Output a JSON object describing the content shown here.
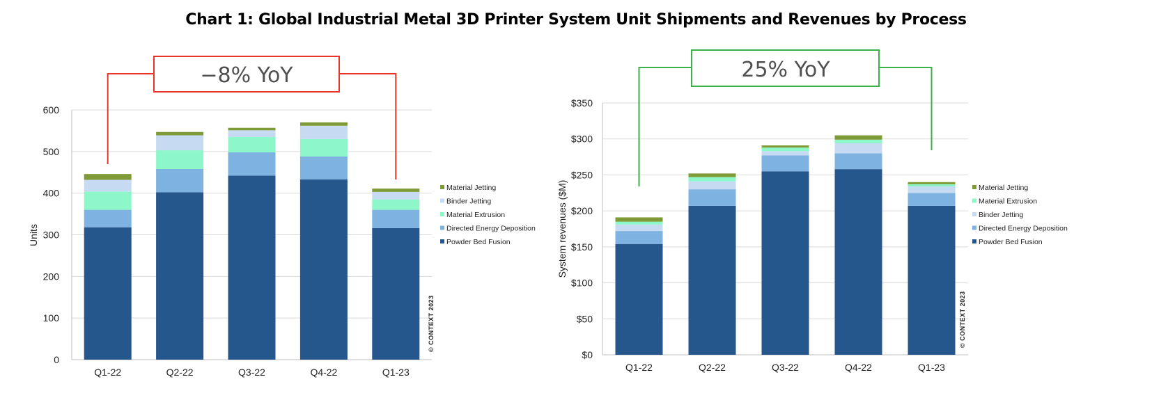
{
  "title": "Chart 1: Global Industrial Metal 3D Printer System Unit Shipments and Revenues by Process",
  "colors": {
    "Powder Bed Fusion": "#25568c",
    "Directed Energy Deposition": "#7eb2e0",
    "Material Extrusion": "#8ef7c9",
    "Binder Jetting": "#c6daf2",
    "Material Jetting": "#7f9b37",
    "callout_red": "#e8352b",
    "callout_green": "#3bb14a"
  },
  "chart_data": [
    {
      "type": "bar",
      "stacked": true,
      "title": "",
      "xlabel": "",
      "ylabel": "Units",
      "ylim": [
        0,
        600
      ],
      "yticks": [
        0,
        100,
        200,
        300,
        400,
        500,
        600
      ],
      "ytick_labels": [
        "0",
        "100",
        "200",
        "300",
        "400",
        "500",
        "600"
      ],
      "grid": true,
      "categories": [
        "Q1-22",
        "Q2-22",
        "Q3-22",
        "Q4-22",
        "Q1-23"
      ],
      "series": [
        {
          "name": "Powder Bed Fusion",
          "values": [
            318,
            402,
            442,
            433,
            316
          ]
        },
        {
          "name": "Directed Energy Deposition",
          "values": [
            42,
            56,
            56,
            55,
            44
          ]
        },
        {
          "name": "Material Extrusion",
          "values": [
            44,
            45,
            37,
            42,
            25
          ]
        },
        {
          "name": "Binder Jetting",
          "values": [
            28,
            36,
            16,
            32,
            18
          ]
        },
        {
          "name": "Material Jetting",
          "values": [
            14,
            8,
            6,
            8,
            8
          ]
        }
      ],
      "legend_order": [
        "Material Jetting",
        "Binder Jetting",
        "Material Extrusion",
        "Directed Energy Deposition",
        "Powder Bed Fusion"
      ],
      "legend_position": "right",
      "annotation": "−8% YoY",
      "copyright": "© CONTEXT 2023"
    },
    {
      "type": "bar",
      "stacked": true,
      "title": "",
      "xlabel": "",
      "ylabel": "System revenues ($M)",
      "ylim": [
        0,
        350
      ],
      "yticks": [
        0,
        50,
        100,
        150,
        200,
        250,
        300,
        350
      ],
      "ytick_labels": [
        "$0",
        "$50",
        "$100",
        "$150",
        "$200",
        "$250",
        "$300",
        "$350"
      ],
      "grid": true,
      "categories": [
        "Q1-22",
        "Q2-22",
        "Q3-22",
        "Q4-22",
        "Q1-23"
      ],
      "series": [
        {
          "name": "Powder Bed Fusion",
          "values": [
            154,
            207,
            255,
            258,
            207
          ]
        },
        {
          "name": "Directed Energy Deposition",
          "values": [
            18,
            23,
            22,
            22,
            18
          ]
        },
        {
          "name": "Binder Jetting",
          "values": [
            9,
            11,
            6,
            14,
            9
          ]
        },
        {
          "name": "Material Extrusion",
          "values": [
            4,
            6,
            5,
            5,
            3
          ]
        },
        {
          "name": "Material Jetting",
          "values": [
            6,
            5,
            3,
            6,
            3
          ]
        }
      ],
      "legend_order": [
        "Material Jetting",
        "Material Extrusion",
        "Binder Jetting",
        "Directed Energy Deposition",
        "Powder Bed Fusion"
      ],
      "legend_position": "right",
      "annotation": "25% YoY",
      "copyright": "© CONTEXT 2023"
    }
  ]
}
